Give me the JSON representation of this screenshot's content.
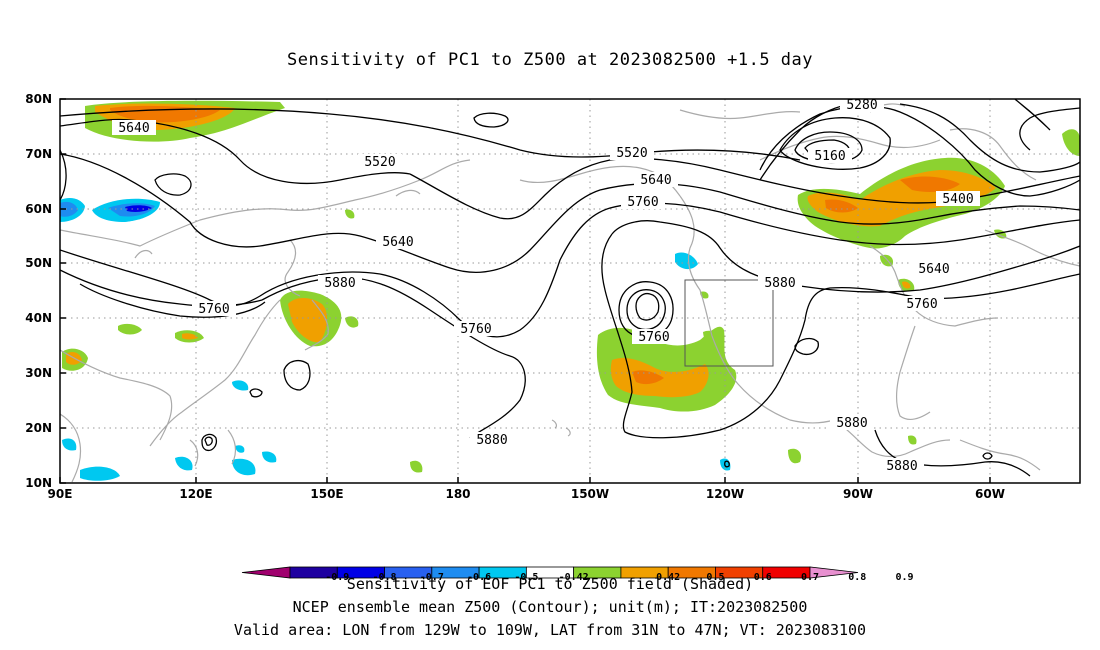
{
  "title": "Sensitivity of PC1 to Z500 at 2023082500 +1.5 day",
  "lat_labels": [
    "80N",
    "70N",
    "60N",
    "50N",
    "40N",
    "30N",
    "20N",
    "10N"
  ],
  "lon_labels": [
    "90E",
    "120E",
    "150E",
    "180",
    "150W",
    "120W",
    "90W",
    "60W"
  ],
  "contour_labels": [
    "5280",
    "5160",
    "5400",
    "5640",
    "5520",
    "5520",
    "5640",
    "5760",
    "5640",
    "5880",
    "5760",
    "5760",
    "5880",
    "5760",
    "5880",
    "5640",
    "5760",
    "5880",
    "5880"
  ],
  "colorbar": {
    "ticks": [
      "-0.9",
      "-0.8",
      "-0.7",
      "-0.6",
      "-0.5",
      "-0.42",
      "0.42",
      "0.5",
      "0.6",
      "0.7",
      "0.8",
      "0.9"
    ],
    "colors": [
      "#a0006e",
      "#1e00a0",
      "#0000e6",
      "#2860f0",
      "#1e8cf0",
      "#00c8f0",
      "#ffffff",
      "#8cd230",
      "#f0a000",
      "#f07800",
      "#f04000",
      "#f00000",
      "#e890d0"
    ]
  },
  "caption_lines": [
    "Sensitivity of EOF PC1 to Z500 field (Shaded)",
    "NCEP ensemble mean Z500 (Contour); unit(m); IT:2023082500",
    "Valid area: LON from 129W to 109W, LAT from 31N to 47N; VT: 2023083100"
  ]
}
